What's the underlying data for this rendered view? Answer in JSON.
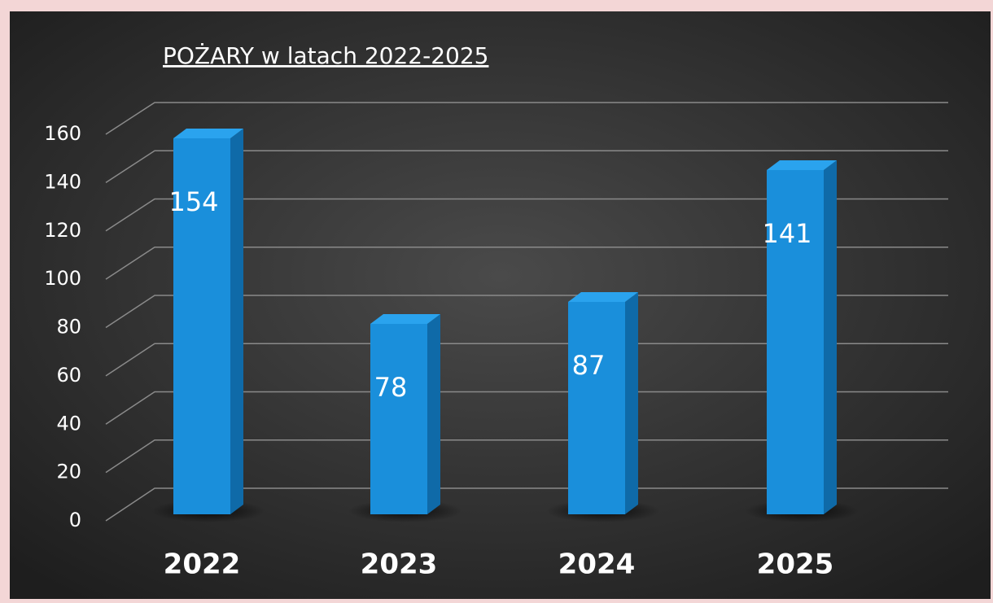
{
  "chart_data": {
    "type": "bar",
    "title": "POŻARY w latach 2022-2025",
    "categories": [
      "2022",
      "2023",
      "2024",
      "2025"
    ],
    "values": [
      154,
      78,
      87,
      141
    ],
    "color": "#1a8fdb",
    "ylim": [
      0,
      160
    ],
    "yticks": [
      0,
      20,
      40,
      60,
      80,
      100,
      120,
      140,
      160
    ],
    "grid": true
  }
}
